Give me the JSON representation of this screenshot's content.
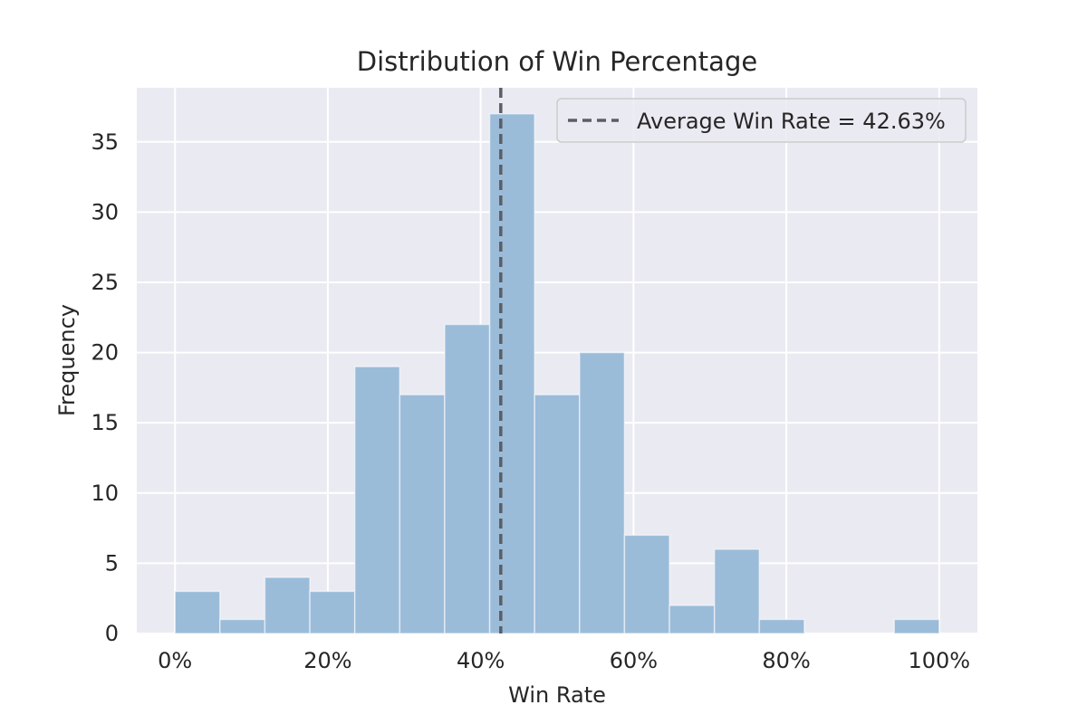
{
  "chart_data": {
    "type": "bar",
    "title": "Distribution of Win Percentage",
    "xlabel": "Win Rate",
    "ylabel": "Frequency",
    "xlim": [
      -0.05,
      1.05
    ],
    "ylim": [
      0,
      38.85
    ],
    "x_ticks": [
      0,
      0.2,
      0.4,
      0.6,
      0.8,
      1.0
    ],
    "x_tick_labels": [
      "0%",
      "20%",
      "40%",
      "60%",
      "80%",
      "100%"
    ],
    "y_ticks": [
      0,
      5,
      10,
      15,
      20,
      25,
      30,
      35
    ],
    "y_tick_labels": [
      "0",
      "5",
      "10",
      "15",
      "20",
      "25",
      "30",
      "35"
    ],
    "bin_edges": [
      0,
      0.0588,
      0.1176,
      0.1765,
      0.2353,
      0.2941,
      0.3529,
      0.4118,
      0.4706,
      0.5294,
      0.5882,
      0.6471,
      0.7059,
      0.7647,
      0.8235,
      0.8824,
      0.9412,
      1.0
    ],
    "values": [
      3,
      1,
      4,
      3,
      19,
      17,
      22,
      37,
      17,
      20,
      7,
      2,
      6,
      1,
      0,
      0,
      1
    ],
    "bar_color": "#9bbcd9",
    "mean_line": {
      "value": 0.4263,
      "label": "Average Win Rate = 42.63%",
      "color": "#5a5e66",
      "style": "dashed"
    },
    "legend_position": "top-right",
    "grid": true,
    "background_color": "#eaeaf2"
  }
}
